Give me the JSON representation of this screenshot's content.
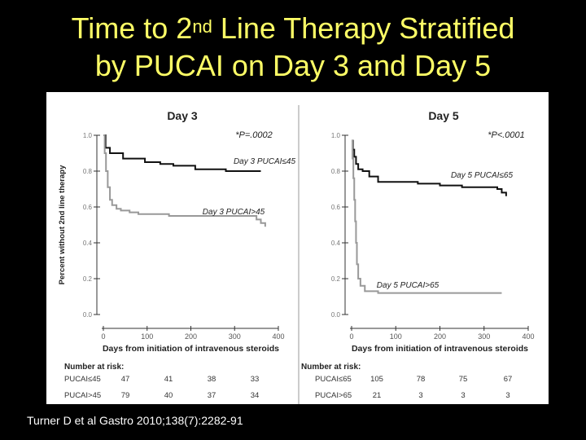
{
  "slide": {
    "title_part1": "Time to 2",
    "title_sup": "nd",
    "title_part2": " Line Therapy Stratified",
    "title_line2": "by PUCAI on Day 3 and Day 5",
    "citation": "Turner D et al Gastro 2010;138(7):2282-91",
    "title_color": "#ffff66"
  },
  "chart_data": [
    {
      "type": "line",
      "step": true,
      "title": "Day 3",
      "pvalue": "*P=.0002",
      "xlabel": "Days from initiation of intravenous steroids",
      "ylabel": "Percent without 2nd line therapy",
      "xlim": [
        0,
        400
      ],
      "ylim": [
        0,
        1
      ],
      "xticks": [
        "0",
        "100",
        "200",
        "300",
        "400"
      ],
      "yticks": [
        "0.0",
        "0.2",
        "0.4",
        "0.6",
        "0.8",
        "1.0"
      ],
      "series": [
        {
          "name": "Day 3 PUCAI≤45",
          "color": "#111111",
          "x": [
            0,
            5,
            15,
            45,
            95,
            130,
            160,
            210,
            280,
            340,
            360
          ],
          "y": [
            1.0,
            0.93,
            0.9,
            0.87,
            0.85,
            0.84,
            0.83,
            0.81,
            0.8,
            0.8,
            0.8
          ]
        },
        {
          "name": "Day 3 PUCAI>45",
          "color": "#999999",
          "x": [
            0,
            3,
            6,
            10,
            15,
            20,
            30,
            40,
            60,
            80,
            150,
            250,
            340,
            350,
            360,
            370
          ],
          "y": [
            1.0,
            0.9,
            0.8,
            0.71,
            0.64,
            0.61,
            0.59,
            0.58,
            0.57,
            0.56,
            0.55,
            0.55,
            0.55,
            0.53,
            0.51,
            0.49
          ]
        }
      ],
      "risk_table": {
        "header": "Number at risk:",
        "rows": [
          {
            "label": "PUCAI≤45",
            "values": [
              "47",
              "41",
              "38",
              "33"
            ]
          },
          {
            "label": "PUCAI>45",
            "values": [
              "79",
              "40",
              "37",
              "34"
            ]
          }
        ]
      }
    },
    {
      "type": "line",
      "step": true,
      "title": "Day 5",
      "pvalue": "*P<.0001",
      "xlabel": "Days from initiation of intravenous steroids",
      "ylabel": "",
      "xlim": [
        0,
        400
      ],
      "ylim": [
        0,
        1
      ],
      "xticks": [
        "0",
        "100",
        "200",
        "300",
        "400"
      ],
      "yticks": [
        "0.0",
        "0.2",
        "0.4",
        "0.6",
        "0.8",
        "1.0"
      ],
      "series": [
        {
          "name": "Day 5 PUCAI≤65",
          "color": "#111111",
          "x": [
            0,
            3,
            6,
            10,
            15,
            25,
            40,
            60,
            150,
            200,
            250,
            300,
            330,
            340,
            350
          ],
          "y": [
            0.97,
            0.92,
            0.88,
            0.84,
            0.81,
            0.8,
            0.77,
            0.74,
            0.73,
            0.72,
            0.71,
            0.71,
            0.7,
            0.68,
            0.66
          ]
        },
        {
          "name": "Day 5 PUCAI>65",
          "color": "#999999",
          "x": [
            0,
            2,
            4,
            6,
            8,
            10,
            12,
            15,
            20,
            30,
            60,
            300,
            340
          ],
          "y": [
            0.97,
            0.87,
            0.76,
            0.64,
            0.52,
            0.4,
            0.28,
            0.2,
            0.16,
            0.13,
            0.12,
            0.12,
            0.12
          ]
        }
      ],
      "risk_table": {
        "header": "Number at risk:",
        "rows": [
          {
            "label": "PUCAI≤65",
            "values": [
              "105",
              "78",
              "75",
              "67"
            ]
          },
          {
            "label": "PUCAI>65",
            "values": [
              "21",
              "3",
              "3",
              "3"
            ]
          }
        ]
      }
    }
  ]
}
